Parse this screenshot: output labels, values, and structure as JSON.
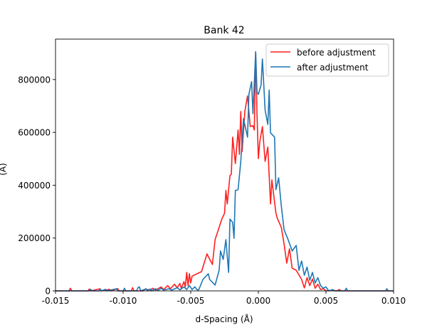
{
  "chart_data": {
    "type": "line",
    "title": "Bank 42",
    "xlabel": "d-Spacing (Å)",
    "ylabel": "(Å)",
    "xlim": [
      -0.015,
      0.01
    ],
    "ylim": [
      0,
      953000
    ],
    "xticks": [
      "-0.015",
      "-0.010",
      "-0.005",
      "0.000",
      "0.005",
      "0.010"
    ],
    "xtick_values": [
      -0.015,
      -0.01,
      -0.005,
      0.0,
      0.005,
      0.01
    ],
    "yticks": [
      "0",
      "200000",
      "400000",
      "600000",
      "800000"
    ],
    "ytick_values": [
      0,
      200000,
      400000,
      600000,
      800000
    ],
    "grid": false,
    "legend_position": "upper right",
    "series": [
      {
        "name": "before adjustment",
        "color": "#ff1f1f",
        "x": [
          -0.015,
          -0.014,
          -0.0139,
          -0.0138,
          -0.0126,
          -0.0125,
          -0.0124,
          -0.0117,
          -0.0116,
          -0.011,
          -0.0109,
          -0.0104,
          -0.0103,
          -0.0094,
          -0.0093,
          -0.0092,
          -0.0085,
          -0.0084,
          -0.008,
          -0.0078,
          -0.0076,
          -0.0072,
          -0.007,
          -0.0067,
          -0.0065,
          -0.0062,
          -0.006,
          -0.0058,
          -0.0057,
          -0.0055,
          -0.0054,
          -0.0053,
          -0.0052,
          -0.0051,
          -0.005,
          -0.0049,
          -0.0042,
          -0.0038,
          -0.0034,
          -0.0032,
          -0.0029,
          -0.0027,
          -0.0025,
          -0.0024,
          -0.0023,
          -0.0021,
          -0.002,
          -0.0019,
          -0.0017,
          -0.0015,
          -0.0014,
          -0.0013,
          -0.0012,
          -0.001,
          -0.0008,
          -0.0006,
          -0.0004,
          -0.0003,
          -0.0002,
          -0.0001,
          0.0,
          0.0001,
          0.0003,
          0.0005,
          0.0007,
          0.0009,
          0.001,
          0.0013,
          0.0014,
          0.0017,
          0.0019,
          0.0021,
          0.0023,
          0.0025,
          0.0028,
          0.0032,
          0.0034,
          0.0036,
          0.0038,
          0.004,
          0.0042,
          0.0044,
          0.0046,
          0.0048,
          0.005,
          0.0055,
          0.0058,
          0.006,
          0.0061,
          0.01
        ],
        "y": [
          0,
          0,
          10000,
          0,
          0,
          7000,
          0,
          8000,
          0,
          6000,
          0,
          9000,
          0,
          0,
          12000,
          0,
          0,
          6000,
          4000,
          10000,
          3000,
          15000,
          5000,
          20000,
          8000,
          25000,
          12000,
          28000,
          10000,
          35000,
          15000,
          70000,
          20000,
          65000,
          30000,
          56000,
          73000,
          140000,
          100000,
          194000,
          240000,
          272000,
          294000,
          380000,
          329000,
          436000,
          442000,
          582000,
          482000,
          609000,
          517000,
          679000,
          528000,
          679000,
          738000,
          622000,
          625000,
          609000,
          905000,
          671000,
          501000,
          563000,
          622000,
          490000,
          544000,
          329000,
          420000,
          294000,
          275000,
          240000,
          178000,
          105000,
          159000,
          86000,
          78000,
          43000,
          11000,
          50000,
          20000,
          45000,
          10000,
          25000,
          5000,
          8000,
          0,
          3000,
          0,
          5000,
          0,
          0
        ]
      },
      {
        "name": "after adjustment",
        "color": "#1f77b4",
        "x": [
          -0.015,
          -0.0125,
          -0.0124,
          -0.0123,
          -0.0118,
          -0.0117,
          -0.0116,
          -0.0113,
          -0.0112,
          -0.0105,
          -0.0104,
          -0.01,
          -0.0099,
          -0.0098,
          -0.009,
          -0.0089,
          -0.0088,
          -0.0087,
          -0.0083,
          -0.0082,
          -0.008,
          -0.0079,
          -0.0076,
          -0.0074,
          -0.0072,
          -0.007,
          -0.0066,
          -0.0064,
          -0.006,
          -0.0058,
          -0.0055,
          -0.0053,
          -0.0051,
          -0.0049,
          -0.0047,
          -0.0045,
          -0.0044,
          -0.0041,
          -0.0037,
          -0.0036,
          -0.0032,
          -0.0029,
          -0.0028,
          -0.0026,
          -0.0024,
          -0.0022,
          -0.0021,
          -0.0019,
          -0.0018,
          -0.0017,
          -0.0015,
          -0.0013,
          -0.0012,
          -0.0011,
          -0.0008,
          -0.0007,
          -0.0005,
          -0.0004,
          -0.0002,
          -0.0001,
          0.0,
          0.0002,
          0.0003,
          0.0005,
          0.0007,
          0.0008,
          0.0009,
          0.0012,
          0.0013,
          0.0015,
          0.0017,
          0.0019,
          0.0022,
          0.0025,
          0.0028,
          0.003,
          0.0032,
          0.0034,
          0.0036,
          0.0038,
          0.004,
          0.0042,
          0.0044,
          0.0046,
          0.0048,
          0.005,
          0.0052,
          0.0055,
          0.0056,
          0.0064,
          0.0065,
          0.0066,
          0.0094,
          0.0095,
          0.0096,
          0.01
        ],
        "y": [
          0,
          0,
          6000,
          0,
          0,
          6000,
          0,
          6000,
          0,
          8000,
          0,
          0,
          10000,
          0,
          0,
          12000,
          15000,
          0,
          8000,
          0,
          7000,
          0,
          8000,
          2000,
          10000,
          3000,
          8000,
          3000,
          12000,
          4000,
          15000,
          5000,
          20000,
          5000,
          15000,
          3000,
          5000,
          43000,
          65000,
          43000,
          22000,
          78000,
          151000,
          119000,
          194000,
          70000,
          272000,
          259000,
          199000,
          380000,
          383000,
          490000,
          563000,
          652000,
          582000,
          744000,
          792000,
          671000,
          905000,
          752000,
          744000,
          779000,
          878000,
          684000,
          630000,
          760000,
          598000,
          582000,
          383000,
          428000,
          320000,
          232000,
          194000,
          151000,
          172000,
          78000,
          113000,
          59000,
          90000,
          40000,
          70000,
          30000,
          50000,
          20000,
          10000,
          15000,
          0,
          5000,
          0,
          0,
          10000,
          0,
          0,
          8000,
          0,
          0
        ]
      }
    ]
  }
}
